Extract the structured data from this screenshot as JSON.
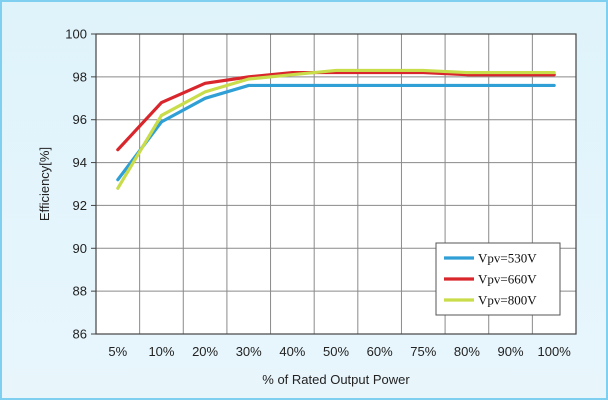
{
  "chart_data": {
    "type": "line",
    "title": "",
    "xlabel": "% of Rated Output Power",
    "ylabel": "Efficiency[%]",
    "categories": [
      "5%",
      "10%",
      "20%",
      "30%",
      "40%",
      "50%",
      "60%",
      "75%",
      "80%",
      "90%",
      "100%"
    ],
    "ylim": [
      86,
      100
    ],
    "yticks": [
      "86",
      "88",
      "90",
      "92",
      "94",
      "96",
      "98",
      "100"
    ],
    "grid": true,
    "legend_position": "bottom-right",
    "series": [
      {
        "name": "Vpv=530V",
        "color": "#2f9fd6",
        "values": [
          93.2,
          95.9,
          97.0,
          97.6,
          97.6,
          97.6,
          97.6,
          97.6,
          97.6,
          97.6,
          97.6
        ]
      },
      {
        "name": "Vpv=660V",
        "color": "#d9262c",
        "values": [
          94.6,
          96.8,
          97.7,
          98.0,
          98.2,
          98.2,
          98.2,
          98.2,
          98.1,
          98.1,
          98.1
        ]
      },
      {
        "name": "Vpv=800V",
        "color": "#c9dc4a",
        "values": [
          92.8,
          96.2,
          97.3,
          97.9,
          98.1,
          98.3,
          98.3,
          98.3,
          98.2,
          98.2,
          98.2
        ]
      }
    ]
  }
}
